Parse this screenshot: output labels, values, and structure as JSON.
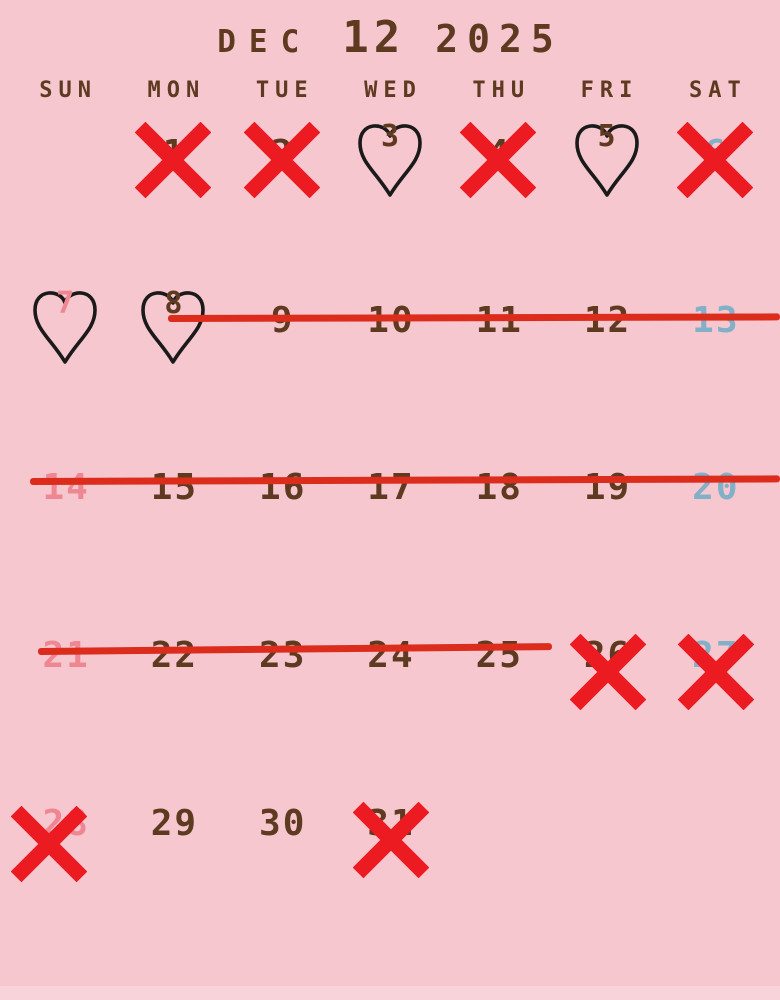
{
  "title": {
    "month_abbr": "DEC",
    "month_num": "12",
    "year": "2025"
  },
  "weekday_header": {
    "labels": [
      "SUN",
      "MON",
      "TUE",
      "WED",
      "THU",
      "FRI",
      "SAT"
    ]
  },
  "colors": {
    "background": "#f6c7cf",
    "footer_strip": "#f8d4da",
    "title_text": "#5e3a20",
    "weekday_header": "#5e3a20",
    "weekday_number": "#5e3a20",
    "sunday_number": "#ee8792",
    "saturday_number": "#82b0c8",
    "x_mark": "#ec1a21",
    "strike_line": "#dc2c1c",
    "heart_outline": "#1a1a1a"
  },
  "calendar": {
    "month_name": "December",
    "year": "2025",
    "weeks": [
      [
        null,
        {
          "day": "1",
          "color": "weekday",
          "mark": "x",
          "variant": "center"
        },
        {
          "day": "2",
          "color": "weekday",
          "mark": "x",
          "variant": "center"
        },
        {
          "day": "3",
          "color": "weekday",
          "mark": "heart"
        },
        {
          "day": "4",
          "color": "weekday",
          "mark": "x",
          "variant": "center"
        },
        {
          "day": "5",
          "color": "weekday",
          "mark": "heart"
        },
        {
          "day": "6",
          "color": "saturday",
          "mark": "x",
          "variant": "center"
        }
      ],
      [
        {
          "day": "7",
          "color": "sunday",
          "mark": "heart"
        },
        {
          "day": "8",
          "color": "weekday",
          "mark": "heart"
        },
        {
          "day": "9",
          "color": "weekday",
          "mark": "none"
        },
        {
          "day": "10",
          "color": "weekday",
          "mark": "none"
        },
        {
          "day": "11",
          "color": "weekday",
          "mark": "none"
        },
        {
          "day": "12",
          "color": "weekday",
          "mark": "none"
        },
        {
          "day": "13",
          "color": "saturday",
          "mark": "none"
        }
      ],
      [
        {
          "day": "14",
          "color": "sunday",
          "mark": "none"
        },
        {
          "day": "15",
          "color": "weekday",
          "mark": "none"
        },
        {
          "day": "16",
          "color": "weekday",
          "mark": "none"
        },
        {
          "day": "17",
          "color": "weekday",
          "mark": "none"
        },
        {
          "day": "18",
          "color": "weekday",
          "mark": "none"
        },
        {
          "day": "19",
          "color": "weekday",
          "mark": "none"
        },
        {
          "day": "20",
          "color": "saturday",
          "mark": "none"
        }
      ],
      [
        {
          "day": "21",
          "color": "sunday",
          "mark": "none"
        },
        {
          "day": "22",
          "color": "weekday",
          "mark": "none"
        },
        {
          "day": "23",
          "color": "weekday",
          "mark": "none"
        },
        {
          "day": "24",
          "color": "weekday",
          "mark": "none"
        },
        {
          "day": "25",
          "color": "weekday",
          "mark": "none"
        },
        {
          "day": "26",
          "color": "weekday",
          "mark": "x",
          "variant": "low"
        },
        {
          "day": "27",
          "color": "saturday",
          "mark": "x",
          "variant": "low"
        }
      ],
      [
        {
          "day": "28",
          "color": "sunday",
          "mark": "x",
          "variant": "low-left"
        },
        {
          "day": "29",
          "color": "weekday",
          "mark": "none"
        },
        {
          "day": "30",
          "color": "weekday",
          "mark": "none"
        },
        {
          "day": "31",
          "color": "weekday",
          "mark": "x",
          "variant": "low"
        },
        null,
        null,
        null
      ]
    ],
    "strikethroughs": [
      {
        "week": 2,
        "days_covered": "9-13"
      },
      {
        "week": 3,
        "days_covered": "14-20"
      },
      {
        "week": 4,
        "days_covered": "21-25"
      }
    ]
  }
}
